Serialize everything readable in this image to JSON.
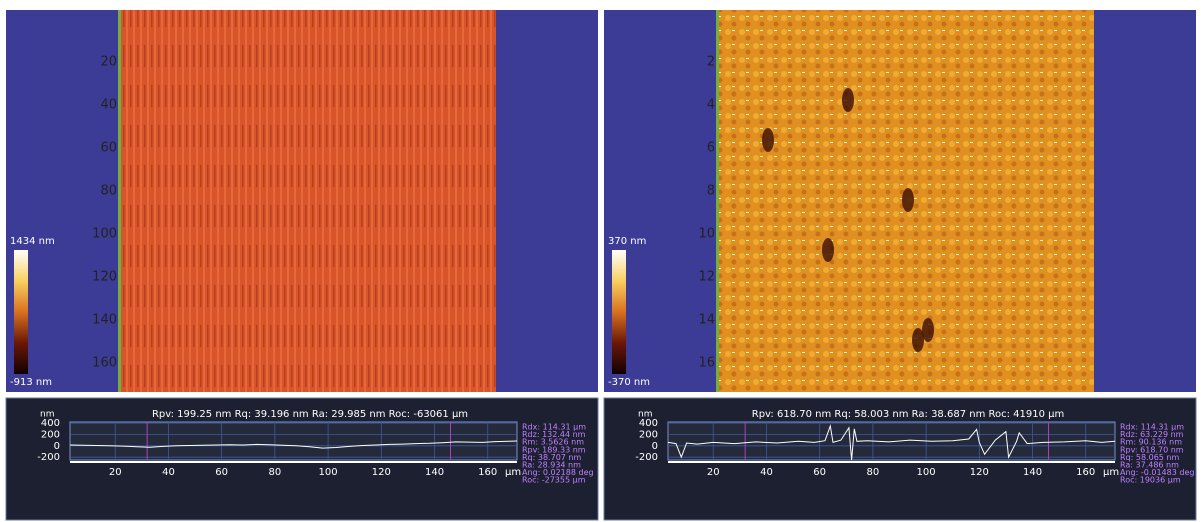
{
  "panels": [
    {
      "image": {
        "scale_max": "1434 nm",
        "scale_min": "-913 nm",
        "y_labels": [
          "20",
          "40",
          "60",
          "80",
          "100",
          "120",
          "140",
          "160"
        ]
      },
      "profile": {
        "y_unit": "nm",
        "x_unit": "µm",
        "summary": "Rpv: 199.25 nm  Rq: 39.196 nm  Ra: 29.985 nm  Roc: -63061 µm",
        "stats": [
          "Rdx: 114.31 µm",
          "Rdz: 132.44 nm",
          "Rm: 3.5626 nm",
          "Rpv: 189.33 nm",
          "Rq: 38.707 nm",
          "Ra: 28.934 nm",
          "Ang: 0.02188 deg",
          "Roc: -27355 µm"
        ],
        "xlim": [
          3,
          171
        ],
        "ylim": [
          -250,
          420
        ],
        "xticks": [
          20,
          40,
          60,
          80,
          100,
          120,
          140,
          160
        ],
        "yticks": [
          400,
          200,
          0,
          -200
        ],
        "cursors": [
          32,
          146
        ],
        "x": [
          3,
          8,
          13,
          18,
          23,
          28,
          33,
          38,
          43,
          48,
          53,
          58,
          63,
          68,
          73,
          78,
          83,
          88,
          93,
          98,
          103,
          108,
          113,
          118,
          123,
          128,
          133,
          138,
          143,
          148,
          153,
          158,
          163,
          168,
          171
        ],
        "y": [
          15,
          10,
          5,
          0,
          -5,
          -15,
          -25,
          -10,
          0,
          5,
          10,
          15,
          20,
          15,
          25,
          20,
          10,
          0,
          -15,
          -40,
          -30,
          -10,
          5,
          15,
          25,
          30,
          40,
          45,
          55,
          70,
          65,
          60,
          75,
          80,
          85
        ]
      }
    },
    {
      "image": {
        "scale_max": "370 nm",
        "scale_min": "-370 nm",
        "y_labels": [
          "2",
          "4",
          "6",
          "8",
          "10",
          "12",
          "14",
          "16"
        ]
      },
      "profile": {
        "y_unit": "nm",
        "x_unit": "µm",
        "summary": "Rpv: 618.70 nm  Rq: 58.003 nm  Ra: 38.687 nm  Roc: 41910 µm",
        "stats": [
          "Rdx: 114.31 µm",
          "Rdz: 63.229 nm",
          "Rm: 90.136 nm",
          "Rpv: 618.70 nm",
          "Rq: 58.065 nm",
          "Ra: 37.486 nm",
          "Ang: -0.01483 deg",
          "Roc: 19036 µm"
        ],
        "xlim": [
          3,
          171
        ],
        "ylim": [
          -250,
          420
        ],
        "xticks": [
          20,
          40,
          60,
          80,
          100,
          120,
          140,
          160
        ],
        "yticks": [
          400,
          200,
          0,
          -200
        ],
        "cursors": [
          32,
          146
        ],
        "x": [
          3,
          6,
          8,
          10,
          14,
          20,
          28,
          36,
          44,
          52,
          58,
          62,
          64,
          65,
          68,
          71,
          72,
          73,
          74,
          78,
          86,
          94,
          102,
          110,
          116,
          119,
          120,
          122,
          126,
          130,
          131,
          134,
          135,
          138,
          144,
          152,
          160,
          166,
          171
        ],
        "y": [
          60,
          40,
          -200,
          50,
          30,
          60,
          40,
          70,
          50,
          80,
          60,
          90,
          350,
          60,
          100,
          320,
          -250,
          300,
          80,
          90,
          70,
          100,
          80,
          90,
          120,
          290,
          60,
          -150,
          100,
          250,
          -200,
          80,
          230,
          40,
          60,
          70,
          90,
          60,
          80
        ]
      }
    }
  ]
}
